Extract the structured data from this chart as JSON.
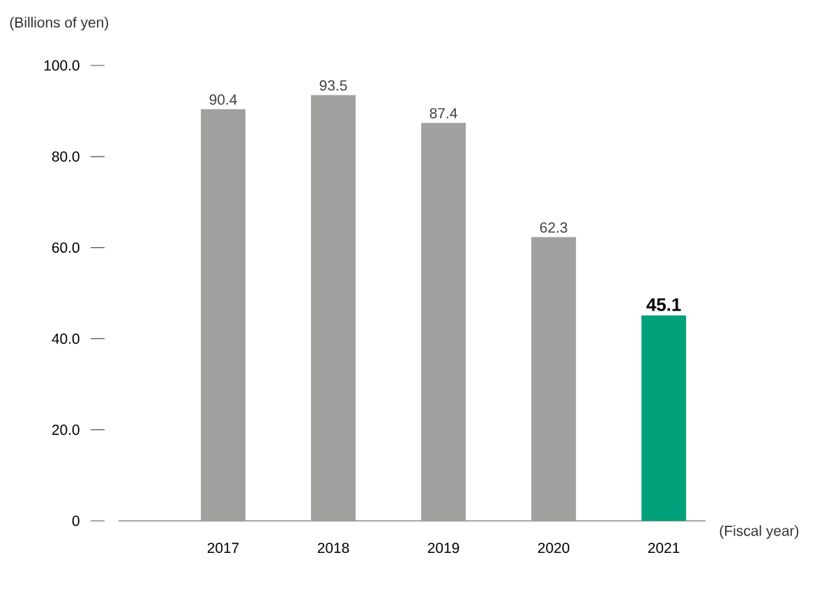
{
  "chart_data": {
    "type": "bar",
    "xlabel": "(Fiscal year)",
    "ylabel": "(Billions of yen)",
    "categories": [
      "2017",
      "2018",
      "2019",
      "2020",
      "2021"
    ],
    "values": [
      90.4,
      93.5,
      87.4,
      62.3,
      45.1
    ],
    "colors": [
      "#a0a19f",
      "#a0a19f",
      "#a0a19f",
      "#a0a19f",
      "#00a07a"
    ],
    "data_labels": true,
    "ylim": [
      0,
      100
    ],
    "yticks": [
      0,
      {
        "value": 20,
        "label": "20.0"
      },
      {
        "value": 40,
        "label": "40.0"
      },
      {
        "value": 60,
        "label": "60.0"
      },
      {
        "value": 80,
        "label": "80.0"
      },
      {
        "value": 100,
        "label": "100.0"
      }
    ],
    "grid": false
  }
}
